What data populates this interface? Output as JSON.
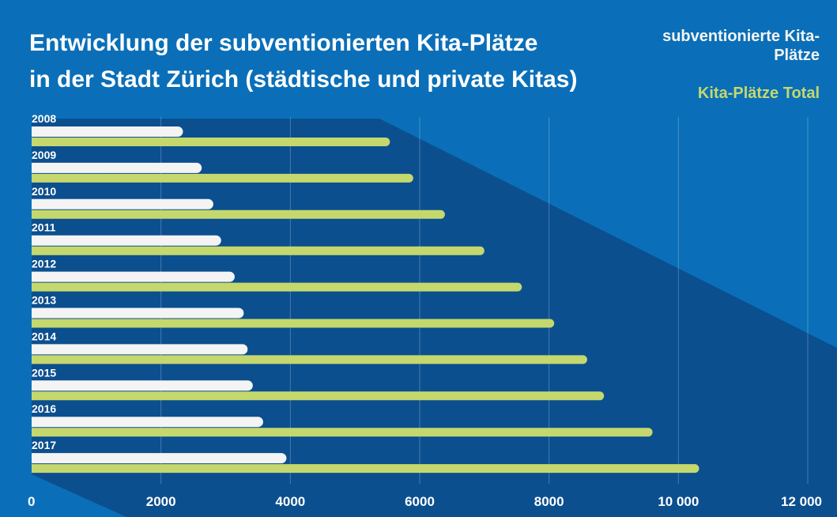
{
  "chart_data": {
    "type": "bar",
    "orientation": "horizontal",
    "title": [
      "Entwicklung der subventionierten Kita-Plätze",
      "in der Stadt Zürich (städtische und private Kitas)"
    ],
    "categories": [
      "2008",
      "2009",
      "2010",
      "2011",
      "2012",
      "2013",
      "2014",
      "2015",
      "2016",
      "2017"
    ],
    "series": [
      {
        "name": "subventionierte Kita-Plätze",
        "color": "#f4f4f4",
        "values": [
          2340,
          2630,
          2810,
          2930,
          3140,
          3280,
          3340,
          3420,
          3580,
          3940
        ]
      },
      {
        "name": "Kita-Plätze Total",
        "color": "#c5d86d",
        "values": [
          5540,
          5900,
          6390,
          7000,
          7580,
          8080,
          8590,
          8850,
          9600,
          10320
        ]
      }
    ],
    "xlim": [
      0,
      12000
    ],
    "xticks": [
      0,
      2000,
      4000,
      6000,
      8000,
      {
        "value": 10000,
        "label": "10 000"
      },
      {
        "value": 12000,
        "label": "12 000"
      }
    ],
    "grid": true
  }
}
